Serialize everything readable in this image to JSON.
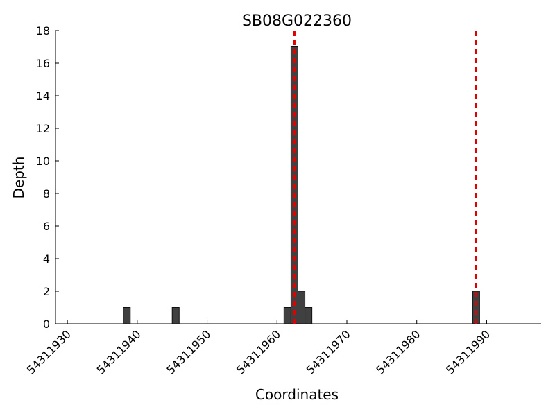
{
  "chart_data": {
    "type": "bar",
    "title": "SB08G022360",
    "x_label": "Coordinates",
    "y_label": "Depth",
    "x": [
      54311938,
      54311945,
      54311961,
      54311962,
      54311963,
      54311964,
      54311988
    ],
    "values": [
      1,
      1,
      1,
      17,
      2,
      1,
      2
    ],
    "color": "#404040",
    "vlines": [
      54311962.5,
      54311988.5
    ],
    "vline_color": "#e00000",
    "xlim": [
      54311928.3,
      54311997.8
    ],
    "xticks": [
      54311930,
      54311940,
      54311950,
      54311960,
      54311970,
      54311980,
      54311990
    ],
    "ylim": [
      0,
      18
    ],
    "yticks": [
      0,
      2,
      4,
      6,
      8,
      10,
      12,
      14,
      16,
      18
    ]
  }
}
